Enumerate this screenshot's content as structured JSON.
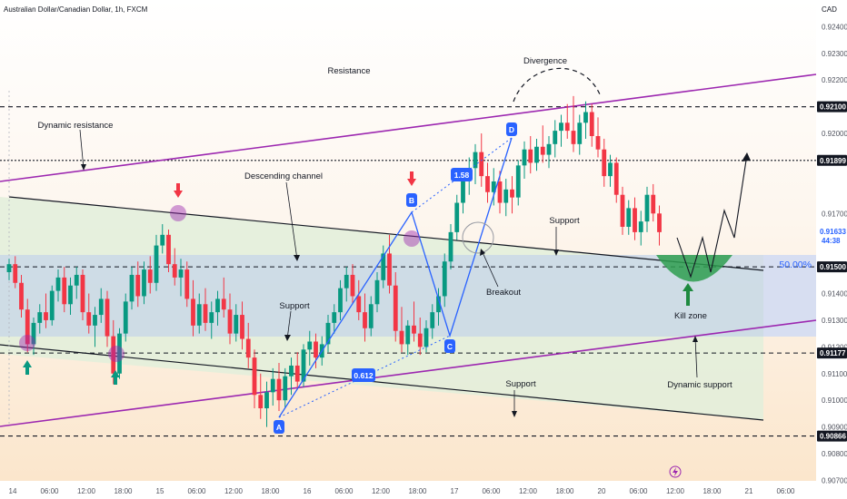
{
  "header": {
    "symbol": "Australian Dollar/Canadian Dollar, 1h, FXCM",
    "currency": "CAD"
  },
  "colors": {
    "up": "#089981",
    "down": "#f23645",
    "purple": "#9c27b0",
    "blue": "#2962ff",
    "zone_green": "#e3f0dc",
    "zone_blue": "#c8d7e8"
  },
  "chart_data": {
    "type": "candlestick",
    "y_axis": {
      "min": 0.9063,
      "max": 0.925,
      "ticks": [
        "0.92400",
        "0.92300",
        "0.92200",
        "0.92000",
        "0.91900",
        "0.91700",
        "0.91600",
        "0.91400",
        "0.91300",
        "0.91200",
        "0.91100",
        "0.91000",
        "0.90900",
        "0.90800",
        "0.90700"
      ],
      "tick_values": [
        0.924,
        0.923,
        0.922,
        0.92,
        0.919,
        0.917,
        0.916,
        0.914,
        0.913,
        0.912,
        0.911,
        0.91,
        0.909,
        0.908,
        0.907
      ]
    },
    "x_axis": {
      "ticks": [
        "14",
        "06:00",
        "12:00",
        "18:00",
        "15",
        "06:00",
        "12:00",
        "18:00",
        "16",
        "06:00",
        "12:00",
        "18:00",
        "17",
        "06:00",
        "12:00",
        "18:00",
        "20",
        "06:00",
        "12:00",
        "18:00",
        "21",
        "06:00"
      ],
      "tick_bars": [
        0,
        6,
        12,
        18,
        24,
        30,
        36,
        42,
        48,
        54,
        60,
        66,
        72,
        78,
        84,
        90,
        96,
        102,
        108,
        114,
        120,
        126
      ]
    },
    "price_tags": [
      {
        "label": "0.92100",
        "value": 0.921
      },
      {
        "label": "0.91899",
        "value": 0.91899
      },
      {
        "label": "0.91633",
        "value": 0.91633,
        "sub": "44:38"
      },
      {
        "label": "0.91500",
        "value": 0.915
      },
      {
        "label": "0.91177",
        "value": 0.91177
      },
      {
        "label": "0.90866",
        "value": 0.90866
      }
    ],
    "levels": [
      0.921,
      0.91899,
      0.915,
      0.91177,
      0.90866
    ],
    "fib_label": "50.00%",
    "candles": [
      [
        0.9148,
        0.9153,
        0.9145,
        0.9151
      ],
      [
        0.9151,
        0.9154,
        0.9142,
        0.9144
      ],
      [
        0.9144,
        0.9147,
        0.9131,
        0.9134
      ],
      [
        0.9134,
        0.9138,
        0.9118,
        0.9121
      ],
      [
        0.9121,
        0.9131,
        0.9117,
        0.9129
      ],
      [
        0.9129,
        0.9136,
        0.9125,
        0.9133
      ],
      [
        0.9133,
        0.914,
        0.9127,
        0.913
      ],
      [
        0.913,
        0.9143,
        0.9128,
        0.9141
      ],
      [
        0.9141,
        0.9149,
        0.9137,
        0.9146
      ],
      [
        0.9146,
        0.915,
        0.9133,
        0.9136
      ],
      [
        0.9136,
        0.9146,
        0.9132,
        0.9143
      ],
      [
        0.9143,
        0.915,
        0.9138,
        0.9147
      ],
      [
        0.9147,
        0.9149,
        0.913,
        0.9133
      ],
      [
        0.9133,
        0.914,
        0.9125,
        0.9128
      ],
      [
        0.9128,
        0.9135,
        0.912,
        0.9132
      ],
      [
        0.9132,
        0.9142,
        0.9129,
        0.9138
      ],
      [
        0.9138,
        0.9141,
        0.912,
        0.9124
      ],
      [
        0.9124,
        0.913,
        0.9106,
        0.911
      ],
      [
        0.911,
        0.9127,
        0.9108,
        0.9125
      ],
      [
        0.9125,
        0.914,
        0.9122,
        0.9137
      ],
      [
        0.9137,
        0.915,
        0.9134,
        0.9147
      ],
      [
        0.9147,
        0.9152,
        0.9135,
        0.9139
      ],
      [
        0.9139,
        0.9152,
        0.9136,
        0.9149
      ],
      [
        0.9149,
        0.9154,
        0.914,
        0.9144
      ],
      [
        0.9144,
        0.9162,
        0.9141,
        0.9158
      ],
      [
        0.9158,
        0.9166,
        0.9155,
        0.9162
      ],
      [
        0.9162,
        0.9164,
        0.9148,
        0.9151
      ],
      [
        0.9151,
        0.9157,
        0.9143,
        0.9146
      ],
      [
        0.9146,
        0.9153,
        0.9139,
        0.9149
      ],
      [
        0.9149,
        0.9152,
        0.9135,
        0.9138
      ],
      [
        0.9138,
        0.9145,
        0.9124,
        0.9128
      ],
      [
        0.9128,
        0.914,
        0.9125,
        0.9136
      ],
      [
        0.9136,
        0.9142,
        0.9126,
        0.9129
      ],
      [
        0.9129,
        0.9137,
        0.9123,
        0.9133
      ],
      [
        0.9133,
        0.9141,
        0.9128,
        0.9138
      ],
      [
        0.9138,
        0.9146,
        0.9131,
        0.9134
      ],
      [
        0.9134,
        0.914,
        0.9121,
        0.9125
      ],
      [
        0.9125,
        0.9136,
        0.9122,
        0.9132
      ],
      [
        0.9132,
        0.9137,
        0.9119,
        0.9123
      ],
      [
        0.9123,
        0.9129,
        0.9112,
        0.9116
      ],
      [
        0.9116,
        0.9119,
        0.9097,
        0.9102
      ],
      [
        0.9102,
        0.911,
        0.9093,
        0.9097
      ],
      [
        0.9097,
        0.9107,
        0.909,
        0.9103
      ],
      [
        0.9103,
        0.9112,
        0.9098,
        0.9108
      ],
      [
        0.9108,
        0.9114,
        0.9096,
        0.91
      ],
      [
        0.91,
        0.9112,
        0.9097,
        0.9109
      ],
      [
        0.9109,
        0.9116,
        0.9102,
        0.9113
      ],
      [
        0.9113,
        0.9118,
        0.9104,
        0.9107
      ],
      [
        0.9107,
        0.9121,
        0.9105,
        0.9119
      ],
      [
        0.9119,
        0.9126,
        0.9113,
        0.9122
      ],
      [
        0.9122,
        0.9125,
        0.9112,
        0.9116
      ],
      [
        0.9116,
        0.9124,
        0.9113,
        0.9121
      ],
      [
        0.9121,
        0.9132,
        0.9118,
        0.9129
      ],
      [
        0.9129,
        0.9136,
        0.9125,
        0.9133
      ],
      [
        0.9133,
        0.9145,
        0.913,
        0.9142
      ],
      [
        0.9142,
        0.915,
        0.9137,
        0.9147
      ],
      [
        0.9147,
        0.9151,
        0.9136,
        0.9139
      ],
      [
        0.9139,
        0.9145,
        0.913,
        0.9133
      ],
      [
        0.9133,
        0.914,
        0.9122,
        0.9127
      ],
      [
        0.9127,
        0.9139,
        0.9124,
        0.9136
      ],
      [
        0.9136,
        0.9148,
        0.9133,
        0.9145
      ],
      [
        0.9145,
        0.9158,
        0.9142,
        0.9155
      ],
      [
        0.9155,
        0.9162,
        0.914,
        0.9143
      ],
      [
        0.9143,
        0.9148,
        0.9122,
        0.9126
      ],
      [
        0.9126,
        0.9135,
        0.9118,
        0.9121
      ],
      [
        0.9121,
        0.913,
        0.9117,
        0.9128
      ],
      [
        0.9128,
        0.9137,
        0.9122,
        0.9125
      ],
      [
        0.9125,
        0.9131,
        0.9117,
        0.912
      ],
      [
        0.912,
        0.913,
        0.9118,
        0.9127
      ],
      [
        0.9127,
        0.9136,
        0.9123,
        0.9133
      ],
      [
        0.9133,
        0.9142,
        0.9128,
        0.9139
      ],
      [
        0.9139,
        0.9155,
        0.9135,
        0.9152
      ],
      [
        0.9152,
        0.9166,
        0.9149,
        0.9163
      ],
      [
        0.9163,
        0.9177,
        0.916,
        0.9174
      ],
      [
        0.9174,
        0.9186,
        0.917,
        0.9183
      ],
      [
        0.9183,
        0.9191,
        0.9177,
        0.9187
      ],
      [
        0.9187,
        0.9196,
        0.9181,
        0.9193
      ],
      [
        0.9193,
        0.92,
        0.918,
        0.9184
      ],
      [
        0.9184,
        0.9189,
        0.9174,
        0.9178
      ],
      [
        0.9178,
        0.9187,
        0.9173,
        0.9182
      ],
      [
        0.9182,
        0.9186,
        0.917,
        0.9174
      ],
      [
        0.9174,
        0.9183,
        0.9169,
        0.9179
      ],
      [
        0.9179,
        0.9184,
        0.917,
        0.9176
      ],
      [
        0.9176,
        0.919,
        0.9173,
        0.9188
      ],
      [
        0.9188,
        0.9197,
        0.9183,
        0.9194
      ],
      [
        0.9194,
        0.9199,
        0.9185,
        0.9189
      ],
      [
        0.9189,
        0.9198,
        0.9186,
        0.9195
      ],
      [
        0.9195,
        0.9203,
        0.9189,
        0.9192
      ],
      [
        0.9192,
        0.9199,
        0.9187,
        0.9196
      ],
      [
        0.9196,
        0.9205,
        0.9191,
        0.9201
      ],
      [
        0.9201,
        0.9207,
        0.9195,
        0.9204
      ],
      [
        0.9204,
        0.9211,
        0.9198,
        0.9201
      ],
      [
        0.9201,
        0.9214,
        0.9193,
        0.9196
      ],
      [
        0.9196,
        0.9207,
        0.9192,
        0.9204
      ],
      [
        0.9204,
        0.9212,
        0.9198,
        0.9208
      ],
      [
        0.9208,
        0.9211,
        0.9195,
        0.9199
      ],
      [
        0.9199,
        0.9206,
        0.9191,
        0.9194
      ],
      [
        0.9194,
        0.9198,
        0.918,
        0.9184
      ],
      [
        0.9184,
        0.9192,
        0.918,
        0.9189
      ],
      [
        0.9189,
        0.9191,
        0.9174,
        0.9177
      ],
      [
        0.9177,
        0.918,
        0.9162,
        0.9165
      ],
      [
        0.9165,
        0.9175,
        0.9162,
        0.9172
      ],
      [
        0.9172,
        0.9176,
        0.916,
        0.9163
      ],
      [
        0.9163,
        0.9171,
        0.9158,
        0.9167
      ],
      [
        0.9167,
        0.918,
        0.9163,
        0.9177
      ],
      [
        0.9177,
        0.9181,
        0.9167,
        0.917
      ],
      [
        0.917,
        0.9173,
        0.9158,
        0.9163
      ]
    ]
  },
  "annotations": {
    "resistance": "Resistance",
    "dynamic_resistance": "Dynamic resistance",
    "descending_channel": "Descending channel",
    "divergence": "Divergence",
    "support_1": "Support",
    "support_2": "Support",
    "support_3": "Support",
    "breakout": "Breakout",
    "kill_zone": "Kill zone",
    "dynamic_support": "Dynamic support",
    "ratio_1": "1.58",
    "ratio_2": "0.612",
    "point_a": "A",
    "point_b": "B",
    "point_c": "C",
    "point_d": "D"
  }
}
